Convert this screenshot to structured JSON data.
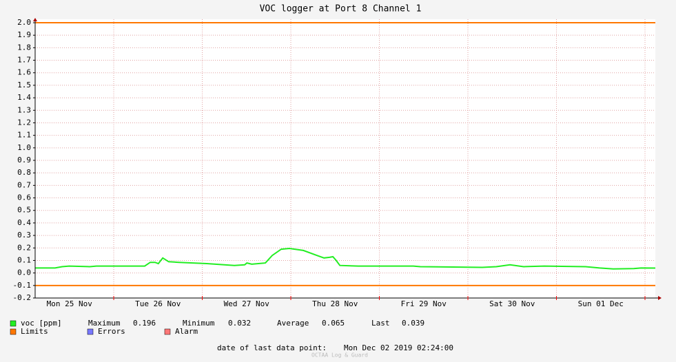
{
  "chart_data": {
    "type": "line",
    "title": "VOC logger at Port 8 Channel 1",
    "x": [
      2.7,
      8.1,
      10.0,
      11.9,
      17.5,
      19.3,
      32.4,
      33.9,
      35.2,
      36.1,
      37.3,
      38.9,
      41.7,
      49.2,
      56.7,
      59.5,
      60.1,
      61.4,
      65.1,
      66.96,
      69.4,
      71.6,
      75.4,
      79.1,
      81.0,
      82.5,
      83.4,
      84.3,
      85.3,
      90.3,
      105.2,
      107.1,
      123.9,
      127.7,
      131.4,
      135.1,
      140.7,
      151.9,
      155.7,
      159.4,
      165.0,
      166.9,
      170.8
    ],
    "series": [
      {
        "name": "voc [ppm]",
        "color": "#22ee22",
        "values": [
          0.04,
          0.04,
          0.05,
          0.055,
          0.05,
          0.055,
          0.055,
          0.085,
          0.085,
          0.075,
          0.12,
          0.09,
          0.085,
          0.075,
          0.06,
          0.065,
          0.08,
          0.07,
          0.08,
          0.14,
          0.19,
          0.196,
          0.18,
          0.14,
          0.12,
          0.125,
          0.13,
          0.1,
          0.06,
          0.055,
          0.055,
          0.05,
          0.045,
          0.05,
          0.065,
          0.05,
          0.055,
          0.05,
          0.04,
          0.032,
          0.035,
          0.04,
          0.039
        ]
      }
    ],
    "xlim": [
      2.7,
      170.8
    ],
    "xticks": [
      {
        "value": 12,
        "label": "Mon 25 Nov"
      },
      {
        "value": 36,
        "label": "Tue 26 Nov"
      },
      {
        "value": 60,
        "label": "Wed 27 Nov"
      },
      {
        "value": 84,
        "label": "Thu 28 Nov"
      },
      {
        "value": 108,
        "label": "Fri 29 Nov"
      },
      {
        "value": 132,
        "label": "Sat 30 Nov"
      },
      {
        "value": 156,
        "label": "Sun 01 Dec"
      }
    ],
    "xgrid": [
      24,
      48,
      72,
      96,
      120,
      144,
      168
    ],
    "ylim": [
      -0.2,
      2.0
    ],
    "yticks": [
      -0.2,
      -0.1,
      {
        "value": 0,
        "label": "0.0"
      },
      0.1,
      0.2,
      0.3,
      0.4,
      0.5,
      0.6,
      0.7,
      0.8,
      0.9,
      {
        "value": 1,
        "label": "1.0"
      },
      1.1,
      1.2,
      1.3,
      1.4,
      1.5,
      1.6,
      1.7,
      1.8,
      1.9,
      {
        "value": 2,
        "label": "2.0"
      }
    ],
    "grid": true,
    "limits": {
      "name": "Limits",
      "color": "#ff7700",
      "values": [
        2.0,
        -0.1
      ]
    },
    "stats": [
      {
        "label": "Maximum",
        "value": 0.196
      },
      {
        "label": "Minimum",
        "value": 0.032
      },
      {
        "label": "Average",
        "value": 0.065
      },
      {
        "label": "Last",
        "value": 0.039
      }
    ],
    "extra_legend": [
      {
        "name": "Errors",
        "color": "#7777ff"
      },
      {
        "name": "Alarm",
        "color": "#ff7777"
      }
    ],
    "footer_label": "date of last data point:",
    "footer_date": "Mon Dec 02 2019 02:24:00",
    "credit": "OCTAA Log & Guard"
  }
}
